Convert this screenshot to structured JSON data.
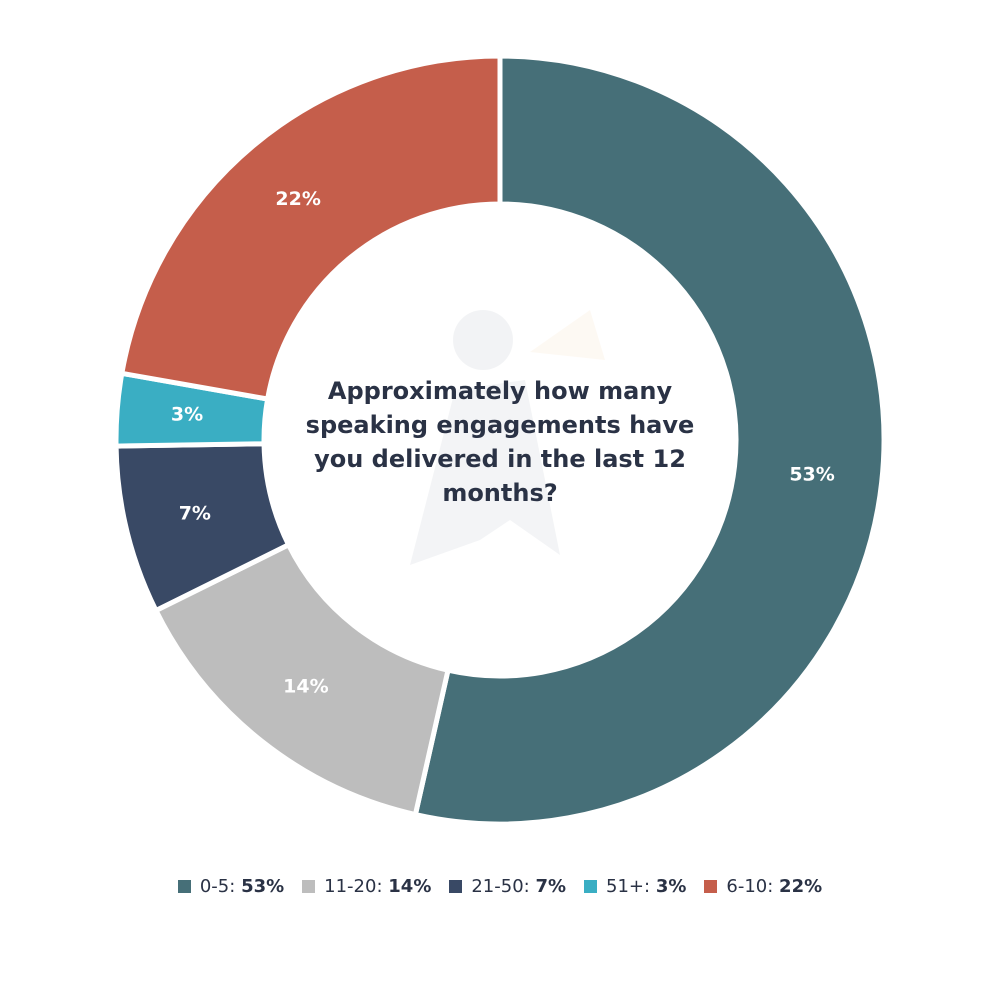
{
  "chart_data": {
    "type": "pie",
    "donut": true,
    "title": "Approximately how many speaking engagements have you delivered in the last 12 months?",
    "categories": [
      "0-5",
      "11-20",
      "21-50",
      "51+",
      "6-10"
    ],
    "values": [
      53,
      14,
      7,
      3,
      22
    ],
    "value_labels": [
      "53%",
      "14%",
      "7%",
      "3%",
      "22%"
    ],
    "colors": [
      "#466f78",
      "#bdbdbd",
      "#394965",
      "#3aaec3",
      "#c55e4b"
    ],
    "legend": {
      "position": "bottom",
      "items": [
        {
          "name": "0-5",
          "value": "53%"
        },
        {
          "name": "11-20",
          "value": "14%"
        },
        {
          "name": "21-50",
          "value": "7%"
        },
        {
          "name": "51+",
          "value": "3%"
        },
        {
          "name": "6-10",
          "value": "22%"
        }
      ]
    }
  }
}
